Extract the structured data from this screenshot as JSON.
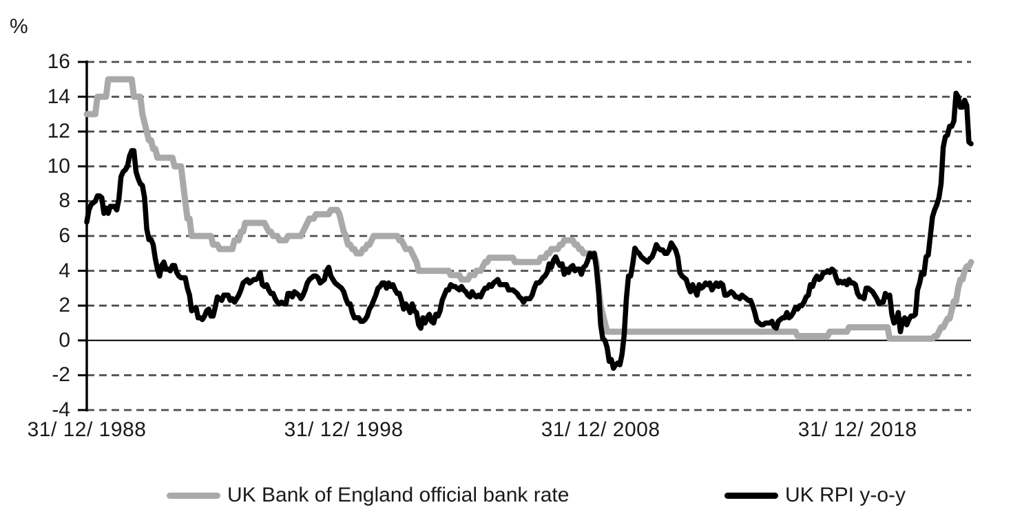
{
  "chart_data": {
    "type": "line",
    "y_axis": {
      "unit_label": "%",
      "ticks": [
        16,
        14,
        12,
        10,
        8,
        6,
        4,
        2,
        0,
        -2,
        -4
      ],
      "range": [
        -4,
        16
      ],
      "gridlines": "dashed",
      "zero_line": "solid"
    },
    "x_axis": {
      "tick_labels": [
        "31/ 12/ 1988",
        "31/ 12/ 1998",
        "31/ 12/ 2008",
        "31/ 12/ 2018"
      ],
      "tick_month_indices": [
        0,
        120,
        240,
        360
      ],
      "frequency": "monthly"
    },
    "grid_color": "#4d4d4d",
    "series": [
      {
        "name": "UK Bank of England official bank rate",
        "color": "#a9a9a9",
        "values": [
          13,
          13,
          13,
          13,
          13,
          14,
          14,
          14,
          14,
          14,
          15,
          15,
          15,
          15,
          15,
          15,
          15,
          15,
          15,
          15,
          15,
          15,
          14,
          14,
          14,
          14,
          13,
          12.5,
          12,
          11.5,
          11.5,
          11,
          11,
          10.5,
          10.5,
          10.5,
          10.5,
          10.5,
          10.5,
          10.5,
          10.5,
          10,
          10,
          10,
          10,
          9,
          8,
          7,
          7,
          6,
          6,
          6,
          6,
          6,
          6,
          6,
          6,
          6,
          6,
          5.5,
          5.5,
          5.5,
          5.25,
          5.25,
          5.25,
          5.25,
          5.25,
          5.25,
          5.25,
          5.75,
          5.75,
          5.75,
          6.25,
          6.25,
          6.75,
          6.75,
          6.75,
          6.75,
          6.75,
          6.75,
          6.75,
          6.75,
          6.75,
          6.75,
          6.5,
          6.25,
          6.25,
          6,
          6,
          6,
          5.75,
          5.75,
          5.75,
          5.75,
          6,
          6,
          6,
          6,
          6,
          6,
          6,
          6.25,
          6.5,
          6.75,
          7,
          7,
          7,
          7.25,
          7.25,
          7.25,
          7.25,
          7.25,
          7.25,
          7.25,
          7.5,
          7.5,
          7.5,
          7.5,
          7.25,
          6.75,
          6.25,
          6,
          5.5,
          5.5,
          5.25,
          5.25,
          5,
          5,
          5,
          5.25,
          5.25,
          5.5,
          5.5,
          5.75,
          6,
          6,
          6,
          6,
          6,
          6,
          6,
          6,
          6,
          6,
          6,
          6,
          5.75,
          5.75,
          5.5,
          5.25,
          5.25,
          5.25,
          5,
          4.75,
          4.5,
          4,
          4,
          4,
          4,
          4,
          4,
          4,
          4,
          4,
          4,
          4,
          4,
          4,
          4,
          4,
          3.75,
          3.75,
          3.75,
          3.75,
          3.75,
          3.5,
          3.5,
          3.5,
          3.5,
          3.75,
          3.75,
          3.75,
          4,
          4,
          4,
          4.25,
          4.5,
          4.5,
          4.75,
          4.75,
          4.75,
          4.75,
          4.75,
          4.75,
          4.75,
          4.75,
          4.75,
          4.75,
          4.75,
          4.75,
          4.5,
          4.5,
          4.5,
          4.5,
          4.5,
          4.5,
          4.5,
          4.5,
          4.5,
          4.5,
          4.5,
          4.5,
          4.75,
          4.75,
          4.75,
          5,
          5,
          5.25,
          5.25,
          5.25,
          5.25,
          5.5,
          5.5,
          5.75,
          5.75,
          5.75,
          5.75,
          5.75,
          5.5,
          5.5,
          5.25,
          5.25,
          5,
          5,
          5,
          5,
          5,
          5,
          4.5,
          3,
          2,
          1.5,
          1,
          0.5,
          0.5,
          0.5,
          0.5,
          0.5,
          0.5,
          0.5,
          0.5,
          0.5,
          0.5,
          0.5,
          0.5,
          0.5,
          0.5,
          0.5,
          0.5,
          0.5,
          0.5,
          0.5,
          0.5,
          0.5,
          0.5,
          0.5,
          0.5,
          0.5,
          0.5,
          0.5,
          0.5,
          0.5,
          0.5,
          0.5,
          0.5,
          0.5,
          0.5,
          0.5,
          0.5,
          0.5,
          0.5,
          0.5,
          0.5,
          0.5,
          0.5,
          0.5,
          0.5,
          0.5,
          0.5,
          0.5,
          0.5,
          0.5,
          0.5,
          0.5,
          0.5,
          0.5,
          0.5,
          0.5,
          0.5,
          0.5,
          0.5,
          0.5,
          0.5,
          0.5,
          0.5,
          0.5,
          0.5,
          0.5,
          0.5,
          0.5,
          0.5,
          0.5,
          0.5,
          0.5,
          0.5,
          0.5,
          0.5,
          0.5,
          0.5,
          0.5,
          0.5,
          0.5,
          0.5,
          0.5,
          0.5,
          0.5,
          0.5,
          0.5,
          0.5,
          0.5,
          0.5,
          0.5,
          0.25,
          0.25,
          0.25,
          0.25,
          0.25,
          0.25,
          0.25,
          0.25,
          0.25,
          0.25,
          0.25,
          0.25,
          0.25,
          0.25,
          0.25,
          0.5,
          0.5,
          0.5,
          0.5,
          0.5,
          0.5,
          0.5,
          0.5,
          0.5,
          0.75,
          0.75,
          0.75,
          0.75,
          0.75,
          0.75,
          0.75,
          0.75,
          0.75,
          0.75,
          0.75,
          0.75,
          0.75,
          0.75,
          0.75,
          0.75,
          0.75,
          0.75,
          0.75,
          0.1,
          0.1,
          0.1,
          0.1,
          0.1,
          0.1,
          0.1,
          0.1,
          0.1,
          0.1,
          0.1,
          0.1,
          0.1,
          0.1,
          0.1,
          0.1,
          0.1,
          0.1,
          0.1,
          0.1,
          0.1,
          0.25,
          0.25,
          0.5,
          0.75,
          0.75,
          1,
          1.25,
          1.25,
          1.75,
          2.25,
          2.25,
          3,
          3.5,
          3.5,
          4,
          4.25,
          4.25,
          4.5
        ]
      },
      {
        "name": "UK RPI y-o-y",
        "color": "#000000",
        "values": [
          6.8,
          7.5,
          7.8,
          7.9,
          8.0,
          8.3,
          8.3,
          8.2,
          7.3,
          7.6,
          7.3,
          7.7,
          7.7,
          7.7,
          7.5,
          8.1,
          9.4,
          9.7,
          9.8,
          10.0,
          10.6,
          10.9,
          10.9,
          9.7,
          9.3,
          9.0,
          8.9,
          8.2,
          6.4,
          5.8,
          5.8,
          5.5,
          4.7,
          4.1,
          3.7,
          4.3,
          4.5,
          4.1,
          4.1,
          4.0,
          4.3,
          4.3,
          3.9,
          3.7,
          3.6,
          3.6,
          3.6,
          3.0,
          2.6,
          1.7,
          1.8,
          1.9,
          1.3,
          1.3,
          1.2,
          1.4,
          1.7,
          1.8,
          1.4,
          1.4,
          1.9,
          2.5,
          2.4,
          2.3,
          2.6,
          2.6,
          2.6,
          2.3,
          2.4,
          2.2,
          2.4,
          2.6,
          2.9,
          3.3,
          3.4,
          3.5,
          3.3,
          3.4,
          3.5,
          3.5,
          3.6,
          3.9,
          3.2,
          3.1,
          3.2,
          2.9,
          2.7,
          2.7,
          2.4,
          2.2,
          2.1,
          2.2,
          2.1,
          2.1,
          2.7,
          2.7,
          2.5,
          2.8,
          2.7,
          2.6,
          2.4,
          2.6,
          2.9,
          3.3,
          3.5,
          3.6,
          3.7,
          3.7,
          3.6,
          3.3,
          3.4,
          3.5,
          4.0,
          4.2,
          3.7,
          3.5,
          3.3,
          3.2,
          3.1,
          3.0,
          2.8,
          2.4,
          2.1,
          2.1,
          1.6,
          1.3,
          1.3,
          1.3,
          1.1,
          1.1,
          1.2,
          1.4,
          1.8,
          2.0,
          2.3,
          2.6,
          3.0,
          3.1,
          3.3,
          3.3,
          3.0,
          3.3,
          3.1,
          3.2,
          2.9,
          2.7,
          2.7,
          2.3,
          1.8,
          2.1,
          1.9,
          1.6,
          2.1,
          1.7,
          1.6,
          0.9,
          0.7,
          1.3,
          1.0,
          1.3,
          1.5,
          1.1,
          1.0,
          1.5,
          1.4,
          1.7,
          2.3,
          2.6,
          2.9,
          2.9,
          3.2,
          3.1,
          3.1,
          3.0,
          2.9,
          3.1,
          2.9,
          2.8,
          2.6,
          2.5,
          2.8,
          2.6,
          2.5,
          2.6,
          2.5,
          2.8,
          3.0,
          3.0,
          3.2,
          3.1,
          3.3,
          3.4,
          3.5,
          3.2,
          3.2,
          3.2,
          3.2,
          2.9,
          2.9,
          2.9,
          2.8,
          2.7,
          2.5,
          2.4,
          2.2,
          2.4,
          2.4,
          2.4,
          2.6,
          3.0,
          3.3,
          3.3,
          3.4,
          3.6,
          3.7,
          3.9,
          4.4,
          4.2,
          4.6,
          4.8,
          4.5,
          4.3,
          4.4,
          3.8,
          4.1,
          3.9,
          4.2,
          4.3,
          4.0,
          4.1,
          4.1,
          3.8,
          4.2,
          4.3,
          4.6,
          5.0,
          4.8,
          5.0,
          4.2,
          3.0,
          0.9,
          0.1,
          0.0,
          -0.4,
          -1.2,
          -1.1,
          -1.6,
          -1.4,
          -1.3,
          -1.4,
          -0.8,
          0.3,
          2.4,
          3.7,
          3.7,
          4.4,
          5.3,
          5.1,
          5.0,
          4.8,
          4.7,
          4.6,
          4.5,
          4.7,
          4.8,
          5.1,
          5.5,
          5.3,
          5.2,
          5.2,
          5.0,
          5.0,
          5.2,
          5.6,
          5.4,
          5.2,
          4.8,
          3.9,
          3.7,
          3.6,
          3.5,
          3.1,
          2.8,
          3.2,
          2.9,
          2.6,
          3.2,
          3.0,
          3.1,
          3.3,
          3.2,
          3.3,
          2.9,
          3.1,
          3.3,
          3.1,
          3.3,
          3.2,
          2.6,
          2.6,
          2.7,
          2.8,
          2.7,
          2.5,
          2.5,
          2.4,
          2.6,
          2.5,
          2.4,
          2.3,
          2.3,
          2.0,
          1.6,
          1.1,
          1.0,
          0.9,
          0.9,
          1.0,
          1.0,
          1.0,
          1.1,
          0.8,
          0.7,
          1.1,
          1.2,
          1.3,
          1.3,
          1.6,
          1.3,
          1.4,
          1.6,
          1.9,
          1.8,
          2.0,
          2.0,
          2.2,
          2.5,
          2.6,
          3.2,
          3.1,
          3.5,
          3.7,
          3.5,
          3.6,
          3.9,
          3.9,
          4.0,
          3.9,
          4.1,
          4.0,
          3.6,
          3.3,
          3.4,
          3.3,
          3.4,
          3.2,
          3.5,
          3.3,
          3.3,
          3.2,
          2.7,
          2.5,
          2.5,
          2.4,
          3.0,
          3.0,
          2.9,
          2.8,
          2.6,
          2.4,
          2.1,
          2.2,
          2.2,
          2.7,
          2.5,
          2.6,
          1.5,
          1.0,
          1.1,
          1.6,
          0.5,
          1.1,
          1.3,
          0.9,
          1.2,
          1.4,
          1.4,
          1.5,
          2.9,
          3.3,
          3.9,
          3.8,
          4.8,
          4.9,
          6.0,
          7.1,
          7.5,
          7.8,
          8.2,
          9.0,
          11.1,
          11.7,
          11.8,
          12.3,
          12.3,
          12.6,
          14.2,
          14.0,
          13.4,
          13.4,
          13.8,
          13.5,
          11.4,
          11.3
        ]
      }
    ]
  },
  "legend": {
    "items": [
      {
        "label": "UK Bank of England official bank rate"
      },
      {
        "label": "UK RPI y-o-y"
      }
    ]
  }
}
